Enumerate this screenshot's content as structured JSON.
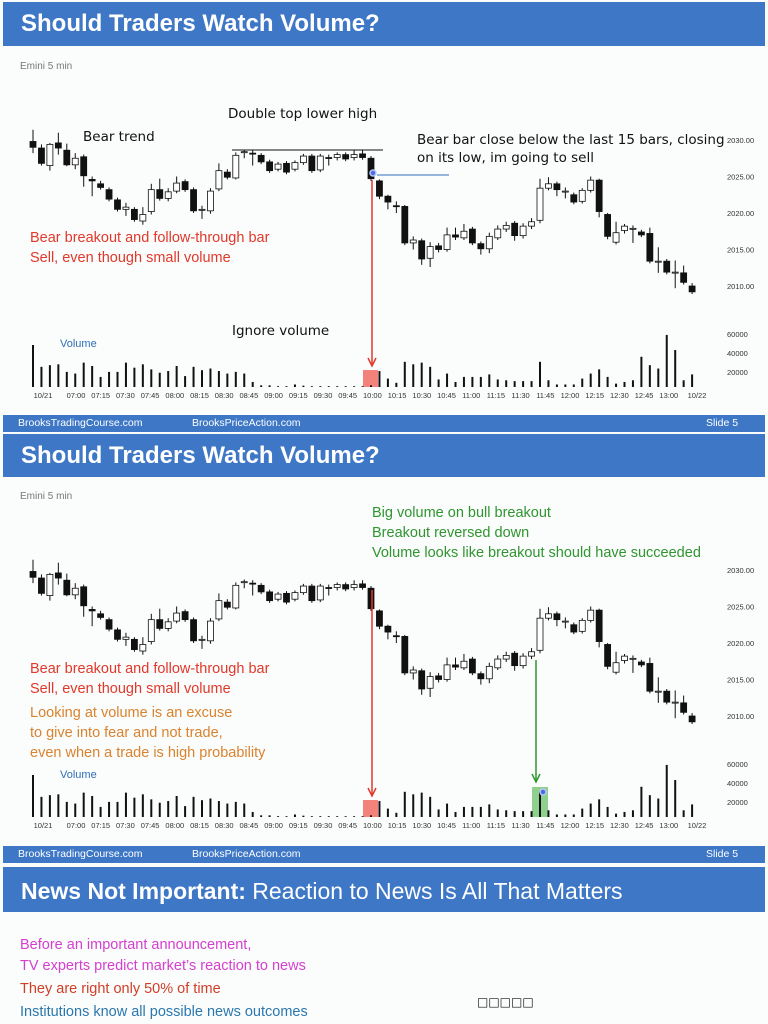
{
  "slides": [
    {
      "title": "Should Traders Watch Volume?",
      "source": "Emini 5 min",
      "volume_label": "Volume",
      "annotations": {
        "bear_trend": "Bear trend",
        "double_top": "Double top lower high",
        "bear_bar_1": "Bear bar close below the last 15 bars, closing",
        "bear_bar_2": "on its low, im going to sell",
        "breakout_1": "Bear breakout and follow-through bar",
        "breakout_2": "Sell, even though small volume",
        "ignore_volume": "Ignore volume"
      },
      "footer": {
        "left": "BrooksTradingCourse.com",
        "middle": "BrooksPriceAction.com",
        "right": "Slide  5"
      }
    },
    {
      "title": "Should Traders Watch Volume?",
      "source": "Emini 5 min",
      "volume_label": "Volume",
      "annotations": {
        "green_1": "Big volume on bull breakout",
        "green_2": "Breakout reversed down",
        "green_3": "Volume looks like breakout should have succeeded",
        "red_1": "Bear breakout and follow-through bar",
        "red_2": "Sell, even though small volume",
        "orange_1": "Looking at volume is an excuse",
        "orange_2": "to give into fear and not trade,",
        "orange_3": "even when a trade is high probability"
      },
      "footer": {
        "left": "BrooksTradingCourse.com",
        "middle": "BrooksPriceAction.com",
        "right": "Slide  5"
      }
    },
    {
      "title_bold": "News Not Important:",
      "title_rest": " Reaction to News Is All That Matters",
      "lines": [
        {
          "text": "Before an important announcement,",
          "color": "#d53fd0"
        },
        {
          "text": "TV experts predict market’s reaction to news",
          "color": "#d53fd0"
        },
        {
          "text": "They are right only 50% of time",
          "color": "#cf3f26"
        },
        {
          "text": "Institutions know all possible news outcomes",
          "color": "#2a78ad"
        }
      ],
      "placeholder_glyphs": "□□□□□"
    }
  ],
  "colors": {
    "header": "#3d77c6",
    "red": "#e0392b",
    "green": "#2f952f",
    "orange": "#d9832e",
    "blue": "#2f6fb8"
  },
  "chart_data": {
    "type": "candlestick",
    "title": "Emini 5 min",
    "price_ticks": [
      "2030.00",
      "2025.00",
      "2020.00",
      "2015.00",
      "2010.00"
    ],
    "volume_ticks": [
      "60000",
      "40000",
      "20000"
    ],
    "time_labels": [
      "10/21",
      "07:00",
      "07:15",
      "07:30",
      "07:45",
      "08:00",
      "08:15",
      "08:30",
      "08:45",
      "09:00",
      "09:15",
      "09:30",
      "09:45",
      "10:00",
      "10:15",
      "10:30",
      "10:45",
      "11:00",
      "11:15",
      "11:30",
      "11:45",
      "12:00",
      "12:15",
      "12:30",
      "12:45",
      "13:00",
      "10/22"
    ],
    "ylim": [
      2008,
      2031.5
    ],
    "highlight_bars": {
      "bear_breakout": 40,
      "bull_breakout": 60
    },
    "ohlc": [
      [
        2029.8,
        2031.4,
        2028.2,
        2029.0
      ],
      [
        2028.9,
        2029.4,
        2026.5,
        2026.8
      ],
      [
        2026.5,
        2029.6,
        2025.8,
        2029.4
      ],
      [
        2029.6,
        2031.0,
        2028.0,
        2028.9
      ],
      [
        2028.6,
        2029.5,
        2026.4,
        2026.6
      ],
      [
        2026.6,
        2028.2,
        2026.0,
        2027.5
      ],
      [
        2027.7,
        2028.0,
        2023.6,
        2025.1
      ],
      [
        2024.6,
        2025.0,
        2022.3,
        2024.4
      ],
      [
        2024.0,
        2024.4,
        2023.2,
        2023.5
      ],
      [
        2023.2,
        2023.5,
        2021.6,
        2021.9
      ],
      [
        2021.8,
        2022.1,
        2020.2,
        2020.5
      ],
      [
        2020.5,
        2021.4,
        2019.6,
        2020.8
      ],
      [
        2020.5,
        2020.8,
        2018.8,
        2019.1
      ],
      [
        2018.9,
        2020.8,
        2018.4,
        2019.8
      ],
      [
        2020.2,
        2024.0,
        2019.8,
        2023.2
      ],
      [
        2023.2,
        2024.7,
        2021.7,
        2022.0
      ],
      [
        2022.0,
        2023.4,
        2021.6,
        2022.9
      ],
      [
        2023.0,
        2025.0,
        2022.7,
        2024.1
      ],
      [
        2024.3,
        2024.6,
        2022.9,
        2023.2
      ],
      [
        2023.2,
        2023.5,
        2020.0,
        2020.3
      ],
      [
        2020.4,
        2021.0,
        2019.2,
        2020.5
      ],
      [
        2020.3,
        2023.4,
        2019.9,
        2023.0
      ],
      [
        2023.3,
        2026.8,
        2023.0,
        2025.8
      ],
      [
        2025.6,
        2026.0,
        2024.6,
        2024.9
      ],
      [
        2024.8,
        2028.3,
        2024.6,
        2027.9
      ],
      [
        2028.3,
        2028.7,
        2027.5,
        2028.4
      ],
      [
        2028.2,
        2028.6,
        2026.5,
        2028.1
      ],
      [
        2027.9,
        2028.2,
        2026.7,
        2027.0
      ],
      [
        2027.0,
        2027.3,
        2025.5,
        2025.8
      ],
      [
        2026.0,
        2027.0,
        2025.7,
        2026.7
      ],
      [
        2026.8,
        2027.1,
        2025.3,
        2025.6
      ],
      [
        2026.0,
        2027.2,
        2025.7,
        2026.9
      ],
      [
        2026.9,
        2028.1,
        2026.6,
        2027.8
      ],
      [
        2027.8,
        2028.1,
        2025.5,
        2025.8
      ],
      [
        2025.9,
        2028.1,
        2025.6,
        2027.8
      ],
      [
        2027.6,
        2028.0,
        2026.5,
        2027.5
      ],
      [
        2027.6,
        2028.3,
        2027.2,
        2028.0
      ],
      [
        2028.0,
        2028.3,
        2027.1,
        2027.4
      ],
      [
        2027.6,
        2028.6,
        2027.2,
        2028.0
      ],
      [
        2028.1,
        2028.6,
        2027.3,
        2027.6
      ],
      [
        2027.5,
        2027.8,
        2024.4,
        2024.7
      ],
      [
        2024.4,
        2024.6,
        2021.9,
        2022.3
      ],
      [
        2022.3,
        2022.5,
        2020.5,
        2021.5
      ],
      [
        2021.0,
        2021.6,
        2020.0,
        2020.9
      ],
      [
        2020.9,
        2021.1,
        2015.6,
        2015.9
      ],
      [
        2015.9,
        2016.8,
        2015.0,
        2016.3
      ],
      [
        2016.2,
        2016.5,
        2012.9,
        2013.7
      ],
      [
        2013.8,
        2016.0,
        2012.6,
        2015.4
      ],
      [
        2015.5,
        2015.9,
        2014.6,
        2015.0
      ],
      [
        2015.0,
        2018.0,
        2014.7,
        2017.0
      ],
      [
        2017.0,
        2018.0,
        2016.3,
        2016.7
      ],
      [
        2016.6,
        2018.5,
        2016.3,
        2017.5
      ],
      [
        2017.8,
        2018.1,
        2015.6,
        2015.9
      ],
      [
        2015.8,
        2016.1,
        2014.3,
        2015.1
      ],
      [
        2015.1,
        2017.3,
        2014.5,
        2016.8
      ],
      [
        2016.6,
        2018.3,
        2016.3,
        2017.8
      ],
      [
        2017.8,
        2018.8,
        2017.4,
        2018.3
      ],
      [
        2018.6,
        2018.9,
        2016.2,
        2016.9
      ],
      [
        2016.9,
        2018.6,
        2016.5,
        2018.2
      ],
      [
        2018.2,
        2019.3,
        2017.8,
        2018.8
      ],
      [
        2019.0,
        2024.7,
        2018.6,
        2023.4
      ],
      [
        2023.4,
        2024.9,
        2023.1,
        2024.0
      ],
      [
        2024.0,
        2024.3,
        2022.3,
        2023.2
      ],
      [
        2023.0,
        2023.5,
        2022.0,
        2023.0
      ],
      [
        2022.5,
        2022.8,
        2021.2,
        2021.5
      ],
      [
        2021.6,
        2023.4,
        2021.3,
        2023.1
      ],
      [
        2023.1,
        2025.0,
        2022.8,
        2024.5
      ],
      [
        2024.5,
        2024.7,
        2019.4,
        2020.2
      ],
      [
        2019.8,
        2020.0,
        2016.4,
        2016.8
      ],
      [
        2016.0,
        2018.8,
        2015.7,
        2017.3
      ],
      [
        2017.6,
        2018.5,
        2017.2,
        2018.2
      ],
      [
        2017.9,
        2018.3,
        2015.9,
        2017.9
      ],
      [
        2017.4,
        2017.7,
        2016.7,
        2017.0
      ],
      [
        2017.2,
        2018.0,
        2013.1,
        2013.4
      ],
      [
        2013.4,
        2015.3,
        2011.8,
        2013.4
      ],
      [
        2013.4,
        2013.7,
        2011.6,
        2011.9
      ],
      [
        2011.9,
        2013.5,
        2009.7,
        2011.9
      ],
      [
        2011.8,
        2012.8,
        2010.2,
        2010.5
      ],
      [
        2010.0,
        2010.4,
        2008.9,
        2009.2
      ]
    ],
    "volume": [
      50000,
      24000,
      26000,
      27000,
      18000,
      16000,
      29000,
      25000,
      12000,
      18000,
      18000,
      29000,
      23000,
      27000,
      21000,
      17000,
      19000,
      25000,
      13000,
      24000,
      20000,
      22000,
      19000,
      16000,
      18000,
      16000,
      6000,
      2000,
      2000,
      1000,
      400,
      3000,
      1600,
      400,
      400,
      400,
      400,
      400,
      400,
      800,
      2000,
      19000,
      10000,
      5000,
      30000,
      27000,
      29000,
      24000,
      9000,
      16000,
      6000,
      12000,
      12000,
      12000,
      15000,
      9000,
      8000,
      7000,
      7000,
      7000,
      30000,
      8000,
      3000,
      3000,
      3000,
      10000,
      16000,
      21000,
      12000,
      4000,
      6000,
      8000,
      36000,
      26000,
      22000,
      62000,
      44000,
      8000,
      15000
    ]
  }
}
